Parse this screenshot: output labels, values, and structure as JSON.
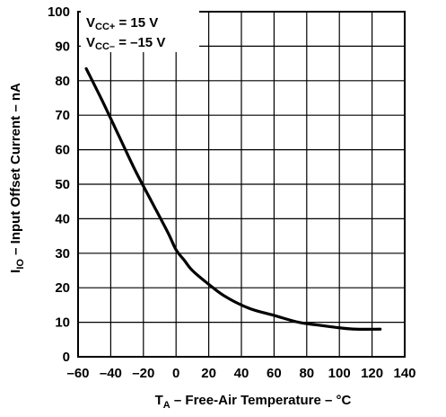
{
  "chart_data": {
    "type": "line",
    "xlabel": "T",
    "xlabel_sub": "A",
    "xlabel_rest": " – Free-Air Temperature – °C",
    "ylabel": "I",
    "ylabel_sub": "IO",
    "ylabel_rest": " – Input Offset Current – nA",
    "xlim": [
      -60,
      140
    ],
    "ylim": [
      0,
      100
    ],
    "x_ticks": [
      -60,
      -40,
      -20,
      0,
      20,
      40,
      60,
      80,
      100,
      120,
      140
    ],
    "x_tick_labels": [
      "–60",
      "–40",
      "–20",
      "0",
      "20",
      "40",
      "60",
      "80",
      "100",
      "120",
      "140"
    ],
    "y_ticks": [
      0,
      10,
      20,
      30,
      40,
      50,
      60,
      70,
      80,
      90,
      100
    ],
    "y_tick_labels": [
      "0",
      "10",
      "20",
      "30",
      "40",
      "50",
      "60",
      "70",
      "80",
      "90",
      "100"
    ],
    "grid": true,
    "annotations": [
      {
        "main": "V",
        "sub": "CC+",
        "rest": " = 15 V"
      },
      {
        "main": "V",
        "sub": "CC–",
        "rest": " = –15 V"
      }
    ],
    "series": [
      {
        "x": [
          -55,
          -45,
          -35,
          -25,
          -15,
          -5,
          0,
          5,
          10,
          20,
          30,
          45,
          60,
          75,
          90,
          100,
          110,
          125
        ],
        "y": [
          83.5,
          74,
          64,
          54,
          45,
          36,
          31,
          28,
          25,
          21,
          17.5,
          14,
          12,
          10,
          9,
          8.4,
          8.0,
          8.0
        ]
      }
    ]
  }
}
